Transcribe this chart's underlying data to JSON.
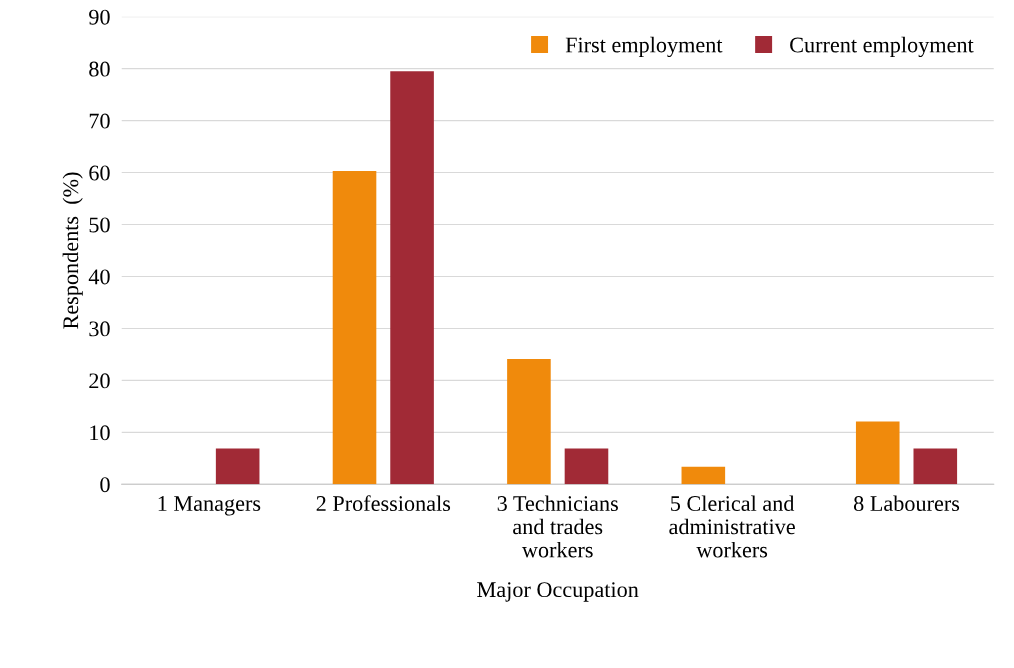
{
  "chart_data": {
    "type": "bar",
    "xlabel": "Major Occupation",
    "ylabel": "Respondents  (%)",
    "categories": [
      "1 Managers",
      "2 Professionals",
      "3 Technicians\nand trades\nworkers",
      "5 Clerical and\nadministrative\nworkers",
      "8 Labourers"
    ],
    "series": [
      {
        "name": "First employment",
        "color": "#f08a0c",
        "values": [
          0,
          60.3,
          24.1,
          3.4,
          12.1
        ]
      },
      {
        "name": "Current employment",
        "color": "#a12a36",
        "values": [
          6.9,
          79.5,
          6.9,
          0,
          6.9
        ]
      }
    ],
    "ylim": [
      0,
      90
    ],
    "yticks": [
      0,
      10,
      20,
      30,
      40,
      50,
      60,
      70,
      80,
      90
    ],
    "grid": "y",
    "legend": "top right"
  }
}
